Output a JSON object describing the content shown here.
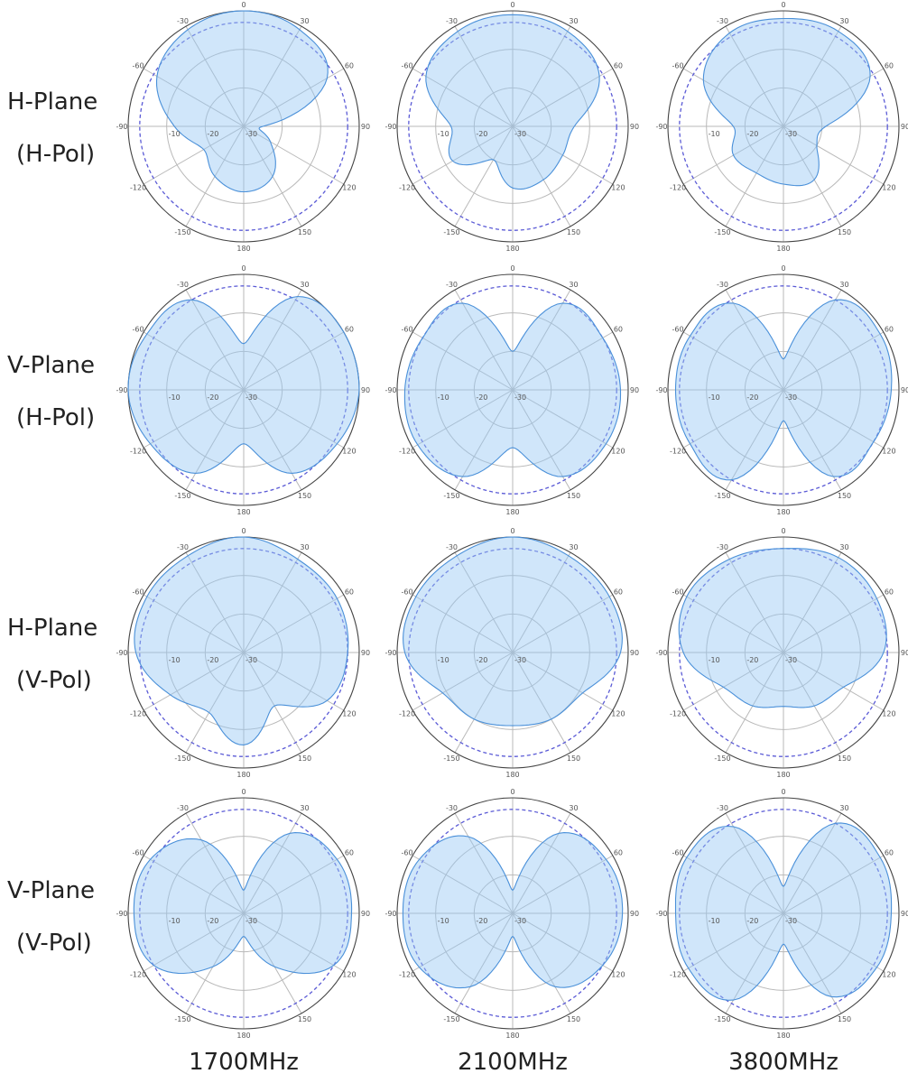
{
  "figure": {
    "row_labels": [
      [
        "H-Plane",
        "(H-Pol)"
      ],
      [
        "V-Plane",
        "(H-Pol)"
      ],
      [
        "H-Plane",
        "(V-Pol)"
      ],
      [
        "V-Plane",
        "(V-Pol)"
      ]
    ],
    "column_labels": [
      "1700MHz",
      "2100MHz",
      "3800MHz"
    ],
    "colors": {
      "pattern_fill": "#cfe5fb",
      "pattern_stroke": "#4a90d9",
      "reference_ring": "#5b5bd6",
      "grid": "#b9b9b9",
      "outer_ring": "#444444"
    }
  },
  "chart_data": {
    "type": "polar",
    "layout_grid": "4 rows x 3 columns",
    "radial_axis": {
      "range_db": [
        -30,
        0
      ],
      "tick_labels": [
        "-10",
        "-20",
        "-30"
      ],
      "rings_db": [
        -10,
        -20,
        -30
      ]
    },
    "angular_axis": {
      "spoke_step_deg": 30,
      "tick_labels": [
        "0",
        "30",
        "60",
        "90",
        "120",
        "150",
        "180",
        "-150",
        "-120",
        "-90",
        "-60",
        "-30"
      ]
    },
    "reference_ring_db": -3,
    "angle_samples_deg": [
      0,
      30,
      60,
      90,
      120,
      150,
      180,
      210,
      240,
      270,
      300,
      330
    ],
    "panels": [
      {
        "row": "H-Plane (H-Pol)",
        "frequency": "1700MHz",
        "gain_db": [
          0,
          -1,
          -5,
          -25,
          -22,
          -15,
          -13,
          -15,
          -18,
          -12,
          -4,
          -1
        ]
      },
      {
        "row": "H-Plane (H-Pol)",
        "frequency": "2100MHz",
        "gain_db": [
          -1,
          -1.5,
          -4,
          -14,
          -15,
          -14,
          -14,
          -20,
          -12,
          -14,
          -4,
          -1.5
        ]
      },
      {
        "row": "H-Plane (H-Pol)",
        "frequency": "3800MHz",
        "gain_db": [
          -2,
          -1.5,
          -4,
          -19,
          -20,
          -14,
          -15,
          -16,
          -15,
          -17,
          -6,
          -2
        ]
      },
      {
        "row": "V-Plane (H-Pol)",
        "frequency": "1700MHz",
        "gain_db": [
          -18,
          -2,
          0,
          0,
          -2,
          -5,
          -16,
          -5,
          -2,
          0,
          -1,
          -3
        ]
      },
      {
        "row": "V-Plane (H-Pol)",
        "frequency": "2100MHz",
        "gain_db": [
          -20,
          -4,
          -3,
          -2,
          -2,
          -4,
          -15,
          -4,
          -1.5,
          -2,
          -3,
          -4
        ]
      },
      {
        "row": "V-Plane (H-Pol)",
        "frequency": "3800MHz",
        "gain_db": [
          -22,
          -3,
          -1,
          -2,
          -3,
          -4,
          -22,
          -3,
          -2,
          -2,
          -2,
          -4
        ]
      },
      {
        "row": "H-Plane (V-Pol)",
        "frequency": "1700MHz",
        "gain_db": [
          0,
          -2,
          -2,
          -3,
          -5,
          -14,
          -6,
          -12,
          -8,
          -2,
          -1,
          -1
        ]
      },
      {
        "row": "H-Plane (V-Pol)",
        "frequency": "2100MHz",
        "gain_db": [
          0,
          -1,
          -1,
          -2,
          -9,
          -10,
          -11,
          -10,
          -9,
          -2,
          -1,
          -1
        ]
      },
      {
        "row": "H-Plane (V-Pol)",
        "frequency": "3800MHz",
        "gain_db": [
          -3,
          -1.5,
          -2,
          -4,
          -12,
          -14,
          -16,
          -14,
          -12,
          -4,
          -1,
          -2
        ]
      },
      {
        "row": "V-Plane (V-Pol)",
        "frequency": "1700MHz",
        "gain_db": [
          -24,
          -6,
          -2,
          -2,
          -3,
          -14,
          -24,
          -14,
          -3,
          -1.5,
          -2,
          -8
        ]
      },
      {
        "row": "V-Plane (V-Pol)",
        "frequency": "2100MHz",
        "gain_db": [
          -24,
          -6,
          -2,
          -1.5,
          -3,
          -8,
          -24,
          -8,
          -2,
          -1.5,
          -2,
          -7
        ]
      },
      {
        "row": "V-Plane (V-Pol)",
        "frequency": "3800MHz",
        "gain_db": [
          -23,
          -3,
          -1,
          -2,
          -2,
          -5,
          -22,
          -4,
          -1.5,
          -2,
          -1,
          -4
        ]
      }
    ]
  }
}
